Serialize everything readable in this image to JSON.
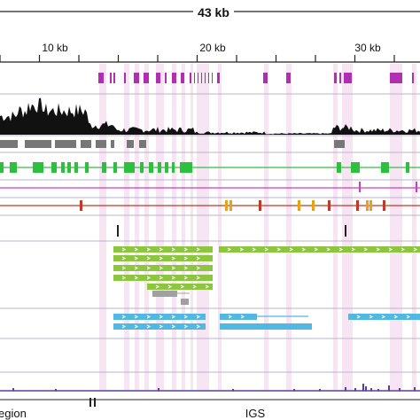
{
  "ruler": {
    "total_label": "43 kb",
    "ticks": [
      "10 kb",
      "20 kb",
      "30 kb"
    ]
  },
  "bottom_labels": {
    "left": "egion",
    "right": "IGS"
  },
  "colors": {
    "highlight": "#f6dcef",
    "purple_feature": "#b02fb0",
    "coverage": "#111111",
    "gray_blocks": "#777777",
    "green_gene": "#2fbf3f",
    "magenta_line": "#cc3fc0",
    "red_line": "#c0392b",
    "orange_mark": "#e8a21a",
    "lime_transcript": "#8cc63f",
    "gray_transcript": "#a0a0a0",
    "blue_transcript": "#4fb9e3",
    "bottom_line": "#5a3f9a"
  }
}
